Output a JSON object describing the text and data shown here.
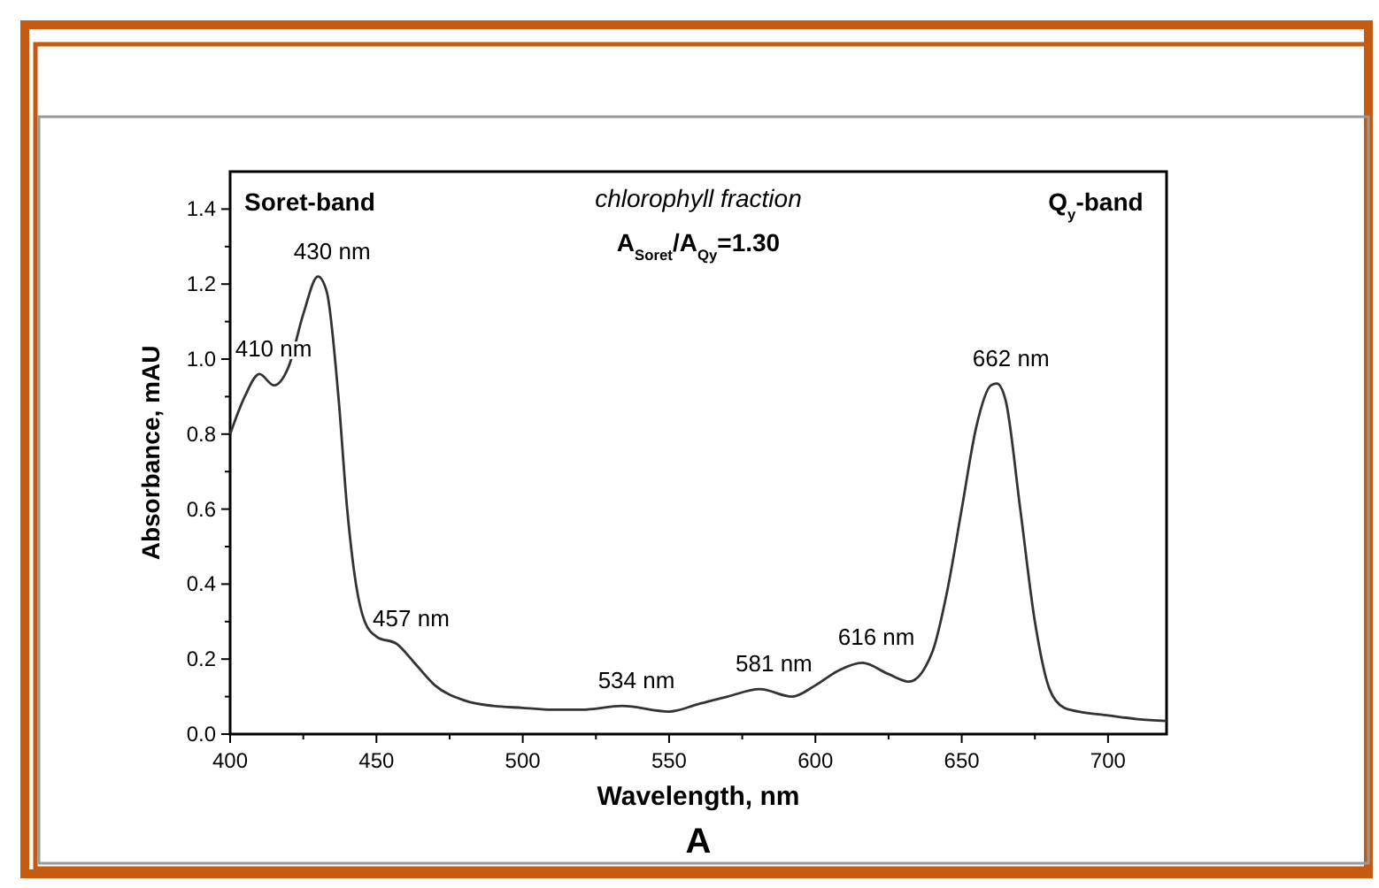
{
  "chart_data": {
    "type": "line",
    "xlabel": "Wavelength, nm",
    "ylabel": "Absorbance, mAU",
    "xlim": [
      400,
      720
    ],
    "ylim": [
      0,
      1.5
    ],
    "xticks": [
      400,
      {
        "value": 425,
        "label": null
      },
      450,
      {
        "value": 475,
        "label": null
      },
      500,
      {
        "value": 525,
        "label": null
      },
      550,
      {
        "value": 575,
        "label": null
      },
      600,
      {
        "value": 625,
        "label": null
      },
      650,
      {
        "value": 675,
        "label": null
      },
      700
    ],
    "yticks": [
      "0.0",
      {
        "value": 0.1,
        "label": null
      },
      {
        "value": 0.2,
        "label": "0.2"
      },
      {
        "value": 0.3,
        "label": null
      },
      {
        "value": 0.4,
        "label": "0.4"
      },
      {
        "value": 0.5,
        "label": null
      },
      {
        "value": 0.6,
        "label": "0.6"
      },
      {
        "value": 0.7,
        "label": null
      },
      {
        "value": 0.8,
        "label": "0.8"
      },
      {
        "value": 0.9,
        "label": null
      },
      {
        "value": 1.0,
        "label": "1.0"
      },
      {
        "value": 1.1,
        "label": null
      },
      {
        "value": 1.2,
        "label": "1.2"
      },
      {
        "value": 1.3,
        "label": null
      },
      {
        "value": 1.4,
        "label": "1.4"
      }
    ],
    "grid": false,
    "marker": "none",
    "line_style": "solid",
    "series": [
      {
        "color": "#333333",
        "x": [
          400,
          405,
          410,
          415,
          420,
          425,
          430,
          433,
          437,
          440,
          443,
          446,
          450,
          457,
          463,
          470,
          480,
          490,
          500,
          510,
          520,
          534,
          550,
          560,
          570,
          581,
          592,
          600,
          608,
          616,
          625,
          632,
          640,
          645,
          650,
          655,
          660,
          662,
          665,
          670,
          675,
          680,
          685,
          690,
          700,
          710,
          720
        ],
        "values": [
          0.8,
          0.9,
          0.96,
          0.93,
          0.98,
          1.12,
          1.22,
          1.18,
          0.9,
          0.6,
          0.4,
          0.3,
          0.26,
          0.24,
          0.19,
          0.13,
          0.09,
          0.075,
          0.07,
          0.065,
          0.065,
          0.075,
          0.06,
          0.08,
          0.1,
          0.12,
          0.1,
          0.13,
          0.17,
          0.19,
          0.16,
          0.14,
          0.22,
          0.38,
          0.6,
          0.82,
          0.93,
          0.935,
          0.89,
          0.6,
          0.3,
          0.12,
          0.07,
          0.06,
          0.05,
          0.04,
          0.035
        ]
      }
    ],
    "annotations": [
      "Soret-band",
      "chlorophyll fraction",
      "A$_{Soret}$/A$_{Qy}$=1.30",
      "Q$_{y}$-band",
      "A",
      {
        "text": "410 nm",
        "x": 410,
        "y": 0.96
      },
      {
        "text": "430 nm",
        "x": 430,
        "y": 1.22
      },
      {
        "text": "457 nm",
        "x": 457,
        "y": 0.24
      },
      {
        "text": "534 nm",
        "x": 534,
        "y": 0.075
      },
      {
        "text": "581 nm",
        "x": 581,
        "y": 0.12
      },
      {
        "text": "616 nm",
        "x": 616,
        "y": 0.19
      },
      {
        "text": "662 nm",
        "x": 662,
        "y": 0.935
      }
    ]
  }
}
